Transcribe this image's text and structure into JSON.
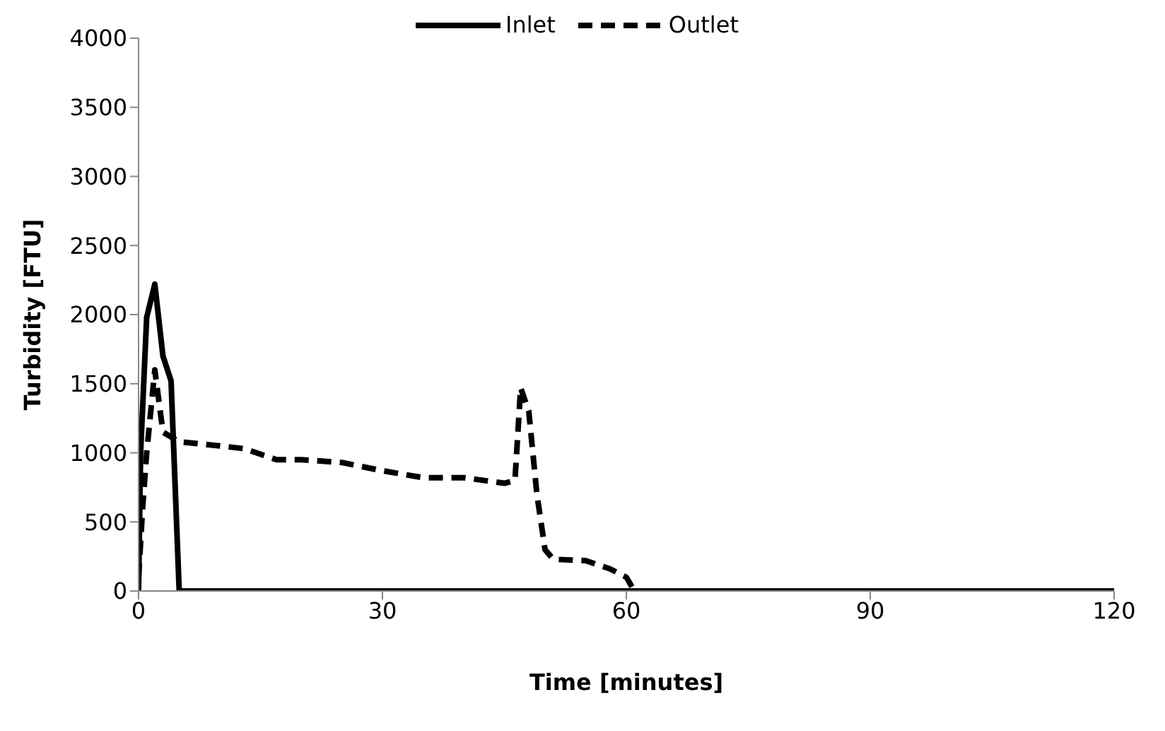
{
  "chart_data": {
    "type": "line",
    "xlabel": "Time  [minutes]",
    "ylabel": "Turbidity  [FTU]",
    "xlim": [
      0,
      120
    ],
    "xticks": [
      0,
      30,
      60,
      90,
      120
    ],
    "ylim": [
      0,
      4000
    ],
    "yticks": [
      0,
      500,
      1000,
      1500,
      2000,
      2500,
      3000,
      3500,
      4000
    ],
    "grid": false,
    "legend": "top",
    "marker": "none",
    "series": [
      {
        "name": "Inlet",
        "color": "#000000",
        "line_style": "solid",
        "x": [
          0,
          0.25,
          1,
          2,
          3,
          4,
          5,
          120
        ],
        "values": [
          0,
          1000,
          1980,
          2220,
          1700,
          1520,
          0,
          0
        ]
      },
      {
        "name": "Outlet",
        "color": "#000000",
        "line_style": "dashed",
        "x": [
          0,
          0.5,
          1,
          2,
          3,
          5,
          10,
          13,
          17,
          20,
          25,
          30,
          35,
          40,
          45,
          46.3,
          47,
          48,
          49,
          50,
          51,
          55,
          58,
          60,
          61,
          120
        ],
        "values": [
          100,
          600,
          1000,
          1600,
          1150,
          1080,
          1050,
          1030,
          950,
          950,
          930,
          870,
          820,
          820,
          780,
          800,
          1470,
          1300,
          700,
          300,
          230,
          220,
          160,
          100,
          0,
          0
        ]
      }
    ]
  }
}
